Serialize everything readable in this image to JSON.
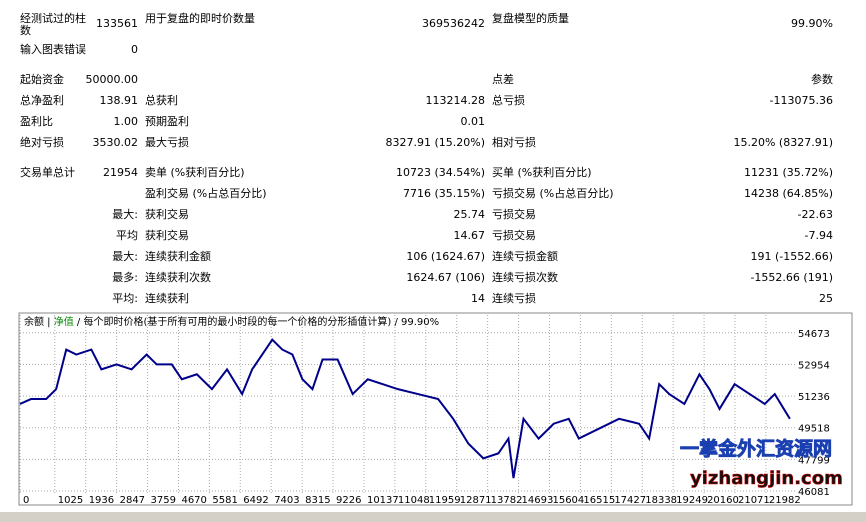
{
  "stats": [
    {
      "c1": {
        "label": "经测试过的柱数",
        "value": "133561"
      },
      "c2": {
        "label": "用于复盘的即时价数量",
        "value": "369536242"
      },
      "c3": {
        "label": "复盘模型的质量",
        "value": "99.90%"
      }
    },
    {
      "c1": {
        "label": "输入图表错误",
        "value": "0"
      }
    },
    {
      "c1": {
        "label": "起始资金",
        "value": "50000.00"
      },
      "c3": {
        "label": "点差",
        "value": "参数"
      }
    },
    {
      "c1": {
        "label": "总净盈利",
        "value": "138.91"
      },
      "c2": {
        "label": "总获利",
        "value": "113214.28"
      },
      "c3": {
        "label": "总亏损",
        "value": "-113075.36"
      }
    },
    {
      "c1": {
        "label": "盈利比",
        "value": "1.00"
      },
      "c2": {
        "label": "预期盈利",
        "value": "0.01"
      }
    },
    {
      "c1": {
        "label": "绝对亏损",
        "value": "3530.02"
      },
      "c2": {
        "label": "最大亏损",
        "value": "8327.91 (15.20%)"
      },
      "c3": {
        "label": "相对亏损",
        "value": "15.20% (8327.91)"
      }
    },
    {
      "c1": {
        "label": "交易单总计",
        "value": "21954"
      },
      "c2": {
        "label": "卖单 (%获利百分比)",
        "value": "10723 (34.54%)"
      },
      "c3": {
        "label": "买单 (%获利百分比)",
        "value": "11231 (35.72%)"
      }
    },
    {
      "c2": {
        "label": "盈利交易 (%占总百分比)",
        "value": "7716 (35.15%)"
      },
      "c3": {
        "label": "亏损交易 (%占总百分比)",
        "value": "14238 (64.85%)"
      }
    },
    {
      "c1": {
        "label": "最大:"
      },
      "c2": {
        "label": "获利交易",
        "value": "25.74"
      },
      "c3": {
        "label": "亏损交易",
        "value": "-22.63"
      }
    },
    {
      "c1": {
        "label": "平均"
      },
      "c2": {
        "label": "获利交易",
        "value": "14.67"
      },
      "c3": {
        "label": "亏损交易",
        "value": "-7.94"
      }
    },
    {
      "c1": {
        "label": "最大:"
      },
      "c2": {
        "label": "连续获利金额",
        "value": "106 (1624.67)"
      },
      "c3": {
        "label": "连续亏损金额",
        "value": "191 (-1552.66)"
      }
    },
    {
      "c1": {
        "label": "最多:"
      },
      "c2": {
        "label": "连续获利次数",
        "value": "1624.67 (106)"
      },
      "c3": {
        "label": "连续亏损次数",
        "value": "-1552.66 (191)"
      }
    },
    {
      "c1": {
        "label": "平均:"
      },
      "c2": {
        "label": "连续获利",
        "value": "14"
      },
      "c3": {
        "label": "连续亏损",
        "value": "25"
      }
    }
  ],
  "chart_data": {
    "type": "line",
    "equity_label": "净值",
    "header": "每个即时价格(基于所有可用的最小时段的每一个价格的分形插值计算)",
    "quality": "99.90%",
    "x": [
      0,
      326,
      770,
      1066,
      1363,
      1659,
      2103,
      2399,
      2844,
      3288,
      3732,
      4028,
      4473,
      4769,
      5213,
      5657,
      6102,
      6546,
      6842,
      7138,
      7435,
      7731,
      8027,
      8323,
      8619,
      8916,
      9360,
      9804,
      10249,
      10693,
      11137,
      11730,
      12322,
      12766,
      13211,
      13655,
      14099,
      14395,
      14543,
      14839,
      15284,
      15728,
      16173,
      16469,
      17061,
      17654,
      18246,
      18542,
      18838,
      19134,
      19579,
      20023,
      20319,
      20616,
      21060,
      21504,
      21948,
      22244,
      22689
    ],
    "series": [
      {
        "name": "余额",
        "color": "#00008b",
        "values": [
          50807,
          51075,
          51075,
          51612,
          53760,
          53492,
          53760,
          52686,
          52955,
          52686,
          53492,
          52955,
          52955,
          52149,
          52418,
          51612,
          52686,
          51344,
          52686,
          53492,
          54297,
          53760,
          53492,
          52149,
          51612,
          53223,
          53223,
          51344,
          52149,
          51881,
          51612,
          51344,
          51075,
          50001,
          48659,
          47853,
          48122,
          48927,
          46779,
          50001,
          48927,
          49733,
          50001,
          48927,
          49464,
          50001,
          49733,
          48927,
          51881,
          51344,
          50807,
          52418,
          51612,
          50538,
          51881,
          51344,
          50807,
          51344,
          50001
        ]
      }
    ],
    "xlim": [
      0,
      22840
    ],
    "ylim": [
      45970,
      55640
    ],
    "xticks": [
      0,
      1025,
      1936,
      2847,
      3759,
      4670,
      5581,
      6492,
      7403,
      8315,
      9226,
      10137,
      11048,
      11959,
      12871,
      13782,
      14693,
      15604,
      16515,
      17427,
      18338,
      19249,
      20160,
      21071,
      21982
    ],
    "yticks": [
      46081,
      47799,
      49518,
      51236,
      52954,
      54673
    ],
    "grid": true
  },
  "watermark": {
    "line1": "一掌金外汇资源网",
    "line2": "yizhangjin.com"
  }
}
